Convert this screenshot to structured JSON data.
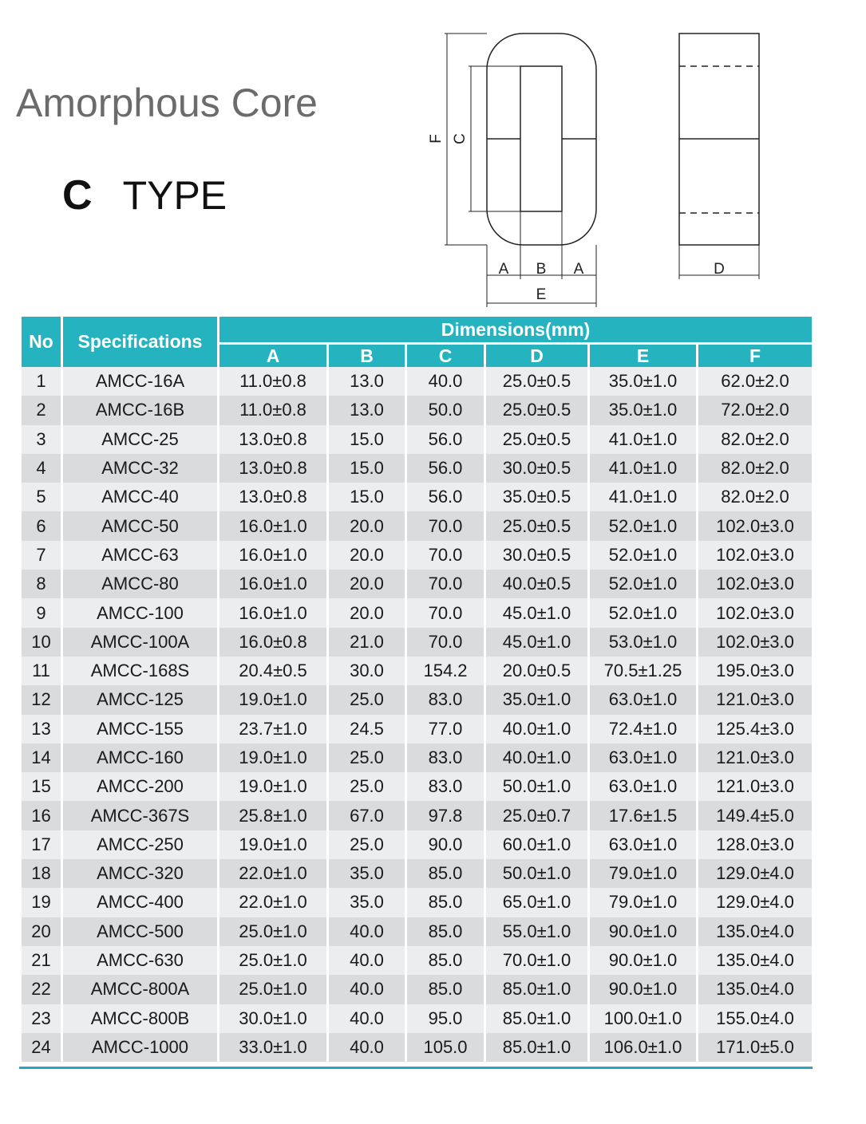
{
  "title": "Amorphous Core",
  "subtitle": {
    "letter": "C",
    "text": "TYPE"
  },
  "diagram_labels": {
    "A": "A",
    "B": "B",
    "C": "C",
    "D": "D",
    "E": "E",
    "F": "F"
  },
  "table": {
    "headers": {
      "no": "No",
      "spec": "Specifications",
      "dimensions": "Dimensions(mm)",
      "cols": [
        "A",
        "B",
        "C",
        "D",
        "E",
        "F"
      ]
    },
    "rows": [
      [
        "1",
        "AMCC-16A",
        "11.0±0.8",
        "13.0",
        "40.0",
        "25.0±0.5",
        "35.0±1.0",
        "62.0±2.0"
      ],
      [
        "2",
        "AMCC-16B",
        "11.0±0.8",
        "13.0",
        "50.0",
        "25.0±0.5",
        "35.0±1.0",
        "72.0±2.0"
      ],
      [
        "3",
        "AMCC-25",
        "13.0±0.8",
        "15.0",
        "56.0",
        "25.0±0.5",
        "41.0±1.0",
        "82.0±2.0"
      ],
      [
        "4",
        "AMCC-32",
        "13.0±0.8",
        "15.0",
        "56.0",
        "30.0±0.5",
        "41.0±1.0",
        "82.0±2.0"
      ],
      [
        "5",
        "AMCC-40",
        "13.0±0.8",
        "15.0",
        "56.0",
        "35.0±0.5",
        "41.0±1.0",
        "82.0±2.0"
      ],
      [
        "6",
        "AMCC-50",
        "16.0±1.0",
        "20.0",
        "70.0",
        "25.0±0.5",
        "52.0±1.0",
        "102.0±3.0"
      ],
      [
        "7",
        "AMCC-63",
        "16.0±1.0",
        "20.0",
        "70.0",
        "30.0±0.5",
        "52.0±1.0",
        "102.0±3.0"
      ],
      [
        "8",
        "AMCC-80",
        "16.0±1.0",
        "20.0",
        "70.0",
        "40.0±0.5",
        "52.0±1.0",
        "102.0±3.0"
      ],
      [
        "9",
        "AMCC-100",
        "16.0±1.0",
        "20.0",
        "70.0",
        "45.0±1.0",
        "52.0±1.0",
        "102.0±3.0"
      ],
      [
        "10",
        "AMCC-100A",
        "16.0±0.8",
        "21.0",
        "70.0",
        "45.0±1.0",
        "53.0±1.0",
        "102.0±3.0"
      ],
      [
        "11",
        "AMCC-168S",
        "20.4±0.5",
        "30.0",
        "154.2",
        "20.0±0.5",
        "70.5±1.25",
        "195.0±3.0"
      ],
      [
        "12",
        "AMCC-125",
        "19.0±1.0",
        "25.0",
        "83.0",
        "35.0±1.0",
        "63.0±1.0",
        "121.0±3.0"
      ],
      [
        "13",
        "AMCC-155",
        "23.7±1.0",
        "24.5",
        "77.0",
        "40.0±1.0",
        "72.4±1.0",
        "125.4±3.0"
      ],
      [
        "14",
        "AMCC-160",
        "19.0±1.0",
        "25.0",
        "83.0",
        "40.0±1.0",
        "63.0±1.0",
        "121.0±3.0"
      ],
      [
        "15",
        "AMCC-200",
        "19.0±1.0",
        "25.0",
        "83.0",
        "50.0±1.0",
        "63.0±1.0",
        "121.0±3.0"
      ],
      [
        "16",
        "AMCC-367S",
        "25.8±1.0",
        "67.0",
        "97.8",
        "25.0±0.7",
        "17.6±1.5",
        "149.4±5.0"
      ],
      [
        "17",
        "AMCC-250",
        "19.0±1.0",
        "25.0",
        "90.0",
        "60.0±1.0",
        "63.0±1.0",
        "128.0±3.0"
      ],
      [
        "18",
        "AMCC-320",
        "22.0±1.0",
        "35.0",
        "85.0",
        "50.0±1.0",
        "79.0±1.0",
        "129.0±4.0"
      ],
      [
        "19",
        "AMCC-400",
        "22.0±1.0",
        "35.0",
        "85.0",
        "65.0±1.0",
        "79.0±1.0",
        "129.0±4.0"
      ],
      [
        "20",
        "AMCC-500",
        "25.0±1.0",
        "40.0",
        "85.0",
        "55.0±1.0",
        "90.0±1.0",
        "135.0±4.0"
      ],
      [
        "21",
        "AMCC-630",
        "25.0±1.0",
        "40.0",
        "85.0",
        "70.0±1.0",
        "90.0±1.0",
        "135.0±4.0"
      ],
      [
        "22",
        "AMCC-800A",
        "25.0±1.0",
        "40.0",
        "85.0",
        "85.0±1.0",
        "90.0±1.0",
        "135.0±4.0"
      ],
      [
        "23",
        "AMCC-800B",
        "30.0±1.0",
        "40.0",
        "95.0",
        "85.0±1.0",
        "100.0±1.0",
        "155.0±4.0"
      ],
      [
        "24",
        "AMCC-1000",
        "33.0±1.0",
        "40.0",
        "105.0",
        "85.0±1.0",
        "106.0±1.0",
        "171.0±5.0"
      ]
    ]
  },
  "colors": {
    "header": "#25b4bf",
    "row_light": "#ebedef",
    "row_dark": "#d9dbdd",
    "bottom_rule": "#2aa6c2"
  }
}
